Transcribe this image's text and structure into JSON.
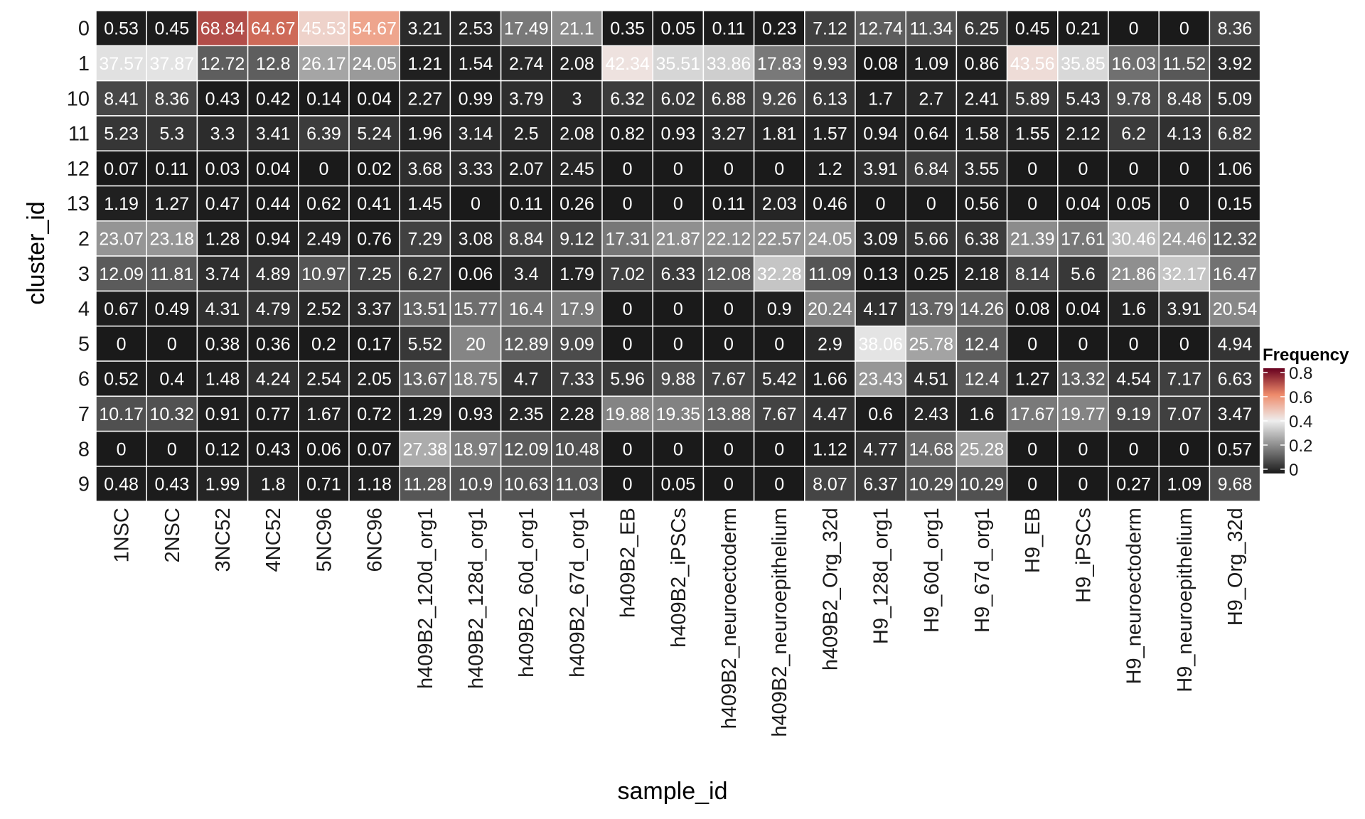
{
  "chart_data": {
    "type": "heatmap",
    "xlabel": "sample_id",
    "ylabel": "cluster_id",
    "legend_title": "Frequency",
    "legend_position": "right",
    "legend_ticks": [
      "0",
      "0.2",
      "0.4",
      "0.6",
      "0.8"
    ],
    "legend_tick_values": [
      0,
      0.2,
      0.4,
      0.6,
      0.8
    ],
    "color_range": [
      0,
      0.8
    ],
    "colors": {
      "low": "#1a1a1a",
      "mid_low": "#858585",
      "mid": "#eeeeee",
      "mid_high": "#ee8a6a",
      "high": "#67001f",
      "grid": "#ffffff",
      "cell_text": "#ffffff"
    },
    "x_categories": [
      "1NSC",
      "2NSC",
      "3NC52",
      "4NC52",
      "5NC96",
      "6NC96",
      "h409B2_120d_org1",
      "h409B2_128d_org1",
      "h409B2_60d_org1",
      "h409B2_67d_org1",
      "h409B2_EB",
      "h409B2_iPSCs",
      "h409B2_neuroectoderm",
      "h409B2_neuroepithelium",
      "h409B2_Org_32d",
      "H9_128d_org1",
      "H9_60d_org1",
      "H9_67d_org1",
      "H9_EB",
      "H9_iPSCs",
      "H9_neuroectoderm",
      "H9_neuroepithelium",
      "H9_Org_32d"
    ],
    "y_categories": [
      "0",
      "1",
      "10",
      "11",
      "12",
      "13",
      "2",
      "3",
      "4",
      "5",
      "6",
      "7",
      "8",
      "9"
    ],
    "values": [
      [
        "0.53",
        "0.45",
        "68.84",
        "64.67",
        "45.53",
        "54.67",
        "3.21",
        "2.53",
        "17.49",
        "21.1",
        "0.35",
        "0.05",
        "0.11",
        "0.23",
        "7.12",
        "12.74",
        "11.34",
        "6.25",
        "0.45",
        "0.21",
        "0",
        "0",
        "8.36"
      ],
      [
        "37.57",
        "37.87",
        "12.72",
        "12.8",
        "26.17",
        "24.05",
        "1.21",
        "1.54",
        "2.74",
        "2.08",
        "42.34",
        "35.51",
        "33.86",
        "17.83",
        "9.93",
        "0.08",
        "1.09",
        "0.86",
        "43.56",
        "35.85",
        "16.03",
        "11.52",
        "3.92"
      ],
      [
        "8.41",
        "8.36",
        "0.43",
        "0.42",
        "0.14",
        "0.04",
        "2.27",
        "0.99",
        "3.79",
        "3",
        "6.32",
        "6.02",
        "6.88",
        "9.26",
        "6.13",
        "1.7",
        "2.7",
        "2.41",
        "5.89",
        "5.43",
        "9.78",
        "8.48",
        "5.09"
      ],
      [
        "5.23",
        "5.3",
        "3.3",
        "3.41",
        "6.39",
        "5.24",
        "1.96",
        "3.14",
        "2.5",
        "2.08",
        "0.82",
        "0.93",
        "3.27",
        "1.81",
        "1.57",
        "0.94",
        "0.64",
        "1.58",
        "1.55",
        "2.12",
        "6.2",
        "4.13",
        "6.82"
      ],
      [
        "0.07",
        "0.11",
        "0.03",
        "0.04",
        "0",
        "0.02",
        "3.68",
        "3.33",
        "2.07",
        "2.45",
        "0",
        "0",
        "0",
        "0",
        "1.2",
        "3.91",
        "6.84",
        "3.55",
        "0",
        "0",
        "0",
        "0",
        "1.06"
      ],
      [
        "1.19",
        "1.27",
        "0.47",
        "0.44",
        "0.62",
        "0.41",
        "1.45",
        "0",
        "0.11",
        "0.26",
        "0",
        "0",
        "0.11",
        "2.03",
        "0.46",
        "0",
        "0",
        "0.56",
        "0",
        "0.04",
        "0.05",
        "0",
        "0.15"
      ],
      [
        "23.07",
        "23.18",
        "1.28",
        "0.94",
        "2.49",
        "0.76",
        "7.29",
        "3.08",
        "8.84",
        "9.12",
        "17.31",
        "21.87",
        "22.12",
        "22.57",
        "24.05",
        "3.09",
        "5.66",
        "6.38",
        "21.39",
        "17.61",
        "30.46",
        "24.46",
        "12.32"
      ],
      [
        "12.09",
        "11.81",
        "3.74",
        "4.89",
        "10.97",
        "7.25",
        "6.27",
        "0.06",
        "3.4",
        "1.79",
        "7.02",
        "6.33",
        "12.08",
        "32.28",
        "11.09",
        "0.13",
        "0.25",
        "2.18",
        "8.14",
        "5.6",
        "21.86",
        "32.17",
        "16.47"
      ],
      [
        "0.67",
        "0.49",
        "4.31",
        "4.79",
        "2.52",
        "3.37",
        "13.51",
        "15.77",
        "16.4",
        "17.9",
        "0",
        "0",
        "0",
        "0.9",
        "20.24",
        "4.17",
        "13.79",
        "14.26",
        "0.08",
        "0.04",
        "1.6",
        "3.91",
        "20.54"
      ],
      [
        "0",
        "0",
        "0.38",
        "0.36",
        "0.2",
        "0.17",
        "5.52",
        "20",
        "12.89",
        "9.09",
        "0",
        "0",
        "0",
        "0",
        "2.9",
        "38.06",
        "25.78",
        "12.4",
        "0",
        "0",
        "0",
        "0",
        "4.94"
      ],
      [
        "0.52",
        "0.4",
        "1.48",
        "4.24",
        "2.54",
        "2.05",
        "13.67",
        "18.75",
        "4.7",
        "7.33",
        "5.96",
        "9.88",
        "7.67",
        "5.42",
        "1.66",
        "23.43",
        "4.51",
        "12.4",
        "1.27",
        "13.32",
        "4.54",
        "7.17",
        "6.63"
      ],
      [
        "10.17",
        "10.32",
        "0.91",
        "0.77",
        "1.67",
        "0.72",
        "1.29",
        "0.93",
        "2.35",
        "2.28",
        "19.88",
        "19.35",
        "13.88",
        "7.67",
        "4.47",
        "0.6",
        "2.43",
        "1.6",
        "17.67",
        "19.77",
        "9.19",
        "7.07",
        "3.47"
      ],
      [
        "0",
        "0",
        "0.12",
        "0.43",
        "0.06",
        "0.07",
        "27.38",
        "18.97",
        "12.09",
        "10.48",
        "0",
        "0",
        "0",
        "0",
        "1.12",
        "4.77",
        "14.68",
        "25.28",
        "0",
        "0",
        "0",
        "0",
        "0.57"
      ],
      [
        "0.48",
        "0.43",
        "1.99",
        "1.8",
        "0.71",
        "1.18",
        "11.28",
        "10.9",
        "10.63",
        "11.03",
        "0",
        "0.05",
        "0",
        "0",
        "8.07",
        "6.37",
        "10.29",
        "10.29",
        "0",
        "0",
        "0.27",
        "1.09",
        "9.68"
      ]
    ]
  }
}
